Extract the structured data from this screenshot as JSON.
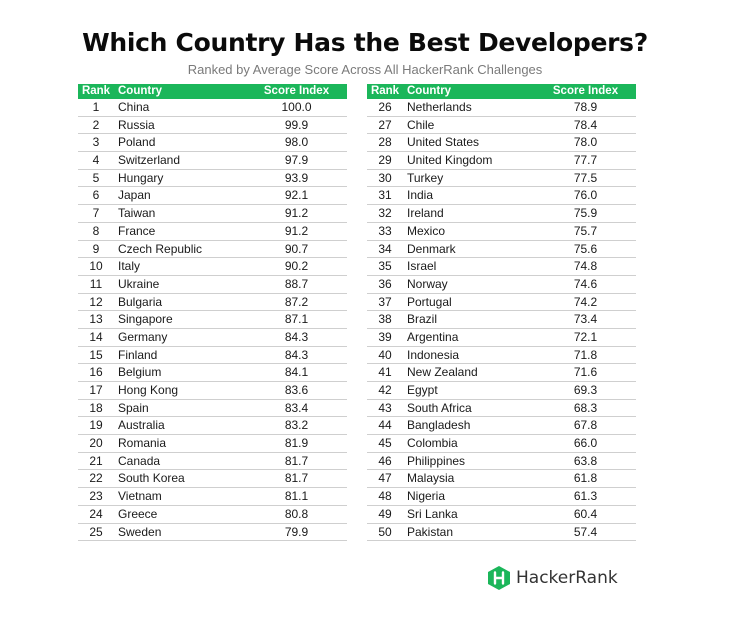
{
  "title": "Which Country Has the Best Developers?",
  "subtitle": "Ranked by Average Score Across All HackerRank Challenges",
  "colors": {
    "header_bg": "#1bb65a",
    "logo_green": "#1bb65a"
  },
  "brand": {
    "name": "HackerRank",
    "icon": "hackerrank-logo-icon"
  },
  "chart_data": {
    "type": "table",
    "columns": [
      "Rank",
      "Country",
      "Score Index"
    ],
    "tables": [
      {
        "rows": [
          [
            "1",
            "China",
            "100.0"
          ],
          [
            "2",
            "Russia",
            "99.9"
          ],
          [
            "3",
            "Poland",
            "98.0"
          ],
          [
            "4",
            "Switzerland",
            "97.9"
          ],
          [
            "5",
            "Hungary",
            "93.9"
          ],
          [
            "6",
            "Japan",
            "92.1"
          ],
          [
            "7",
            "Taiwan",
            "91.2"
          ],
          [
            "8",
            "France",
            "91.2"
          ],
          [
            "9",
            "Czech Republic",
            "90.7"
          ],
          [
            "10",
            "Italy",
            "90.2"
          ],
          [
            "11",
            "Ukraine",
            "88.7"
          ],
          [
            "12",
            "Bulgaria",
            "87.2"
          ],
          [
            "13",
            "Singapore",
            "87.1"
          ],
          [
            "14",
            "Germany",
            "84.3"
          ],
          [
            "15",
            "Finland",
            "84.3"
          ],
          [
            "16",
            "Belgium",
            "84.1"
          ],
          [
            "17",
            "Hong Kong",
            "83.6"
          ],
          [
            "18",
            "Spain",
            "83.4"
          ],
          [
            "19",
            "Australia",
            "83.2"
          ],
          [
            "20",
            "Romania",
            "81.9"
          ],
          [
            "21",
            "Canada",
            "81.7"
          ],
          [
            "22",
            "South Korea",
            "81.7"
          ],
          [
            "23",
            "Vietnam",
            "81.1"
          ],
          [
            "24",
            "Greece",
            "80.8"
          ],
          [
            "25",
            "Sweden",
            "79.9"
          ]
        ]
      },
      {
        "rows": [
          [
            "26",
            "Netherlands",
            "78.9"
          ],
          [
            "27",
            "Chile",
            "78.4"
          ],
          [
            "28",
            "United States",
            "78.0"
          ],
          [
            "29",
            "United Kingdom",
            "77.7"
          ],
          [
            "30",
            "Turkey",
            "77.5"
          ],
          [
            "31",
            "India",
            "76.0"
          ],
          [
            "32",
            "Ireland",
            "75.9"
          ],
          [
            "33",
            "Mexico",
            "75.7"
          ],
          [
            "34",
            "Denmark",
            "75.6"
          ],
          [
            "35",
            "Israel",
            "74.8"
          ],
          [
            "36",
            "Norway",
            "74.6"
          ],
          [
            "37",
            "Portugal",
            "74.2"
          ],
          [
            "38",
            "Brazil",
            "73.4"
          ],
          [
            "39",
            "Argentina",
            "72.1"
          ],
          [
            "40",
            "Indonesia",
            "71.8"
          ],
          [
            "41",
            "New Zealand",
            "71.6"
          ],
          [
            "42",
            "Egypt",
            "69.3"
          ],
          [
            "43",
            "South Africa",
            "68.3"
          ],
          [
            "44",
            "Bangladesh",
            "67.8"
          ],
          [
            "45",
            "Colombia",
            "66.0"
          ],
          [
            "46",
            "Philippines",
            "63.8"
          ],
          [
            "47",
            "Malaysia",
            "61.8"
          ],
          [
            "48",
            "Nigeria",
            "61.3"
          ],
          [
            "49",
            "Sri Lanka",
            "60.4"
          ],
          [
            "50",
            "Pakistan",
            "57.4"
          ]
        ]
      }
    ]
  }
}
